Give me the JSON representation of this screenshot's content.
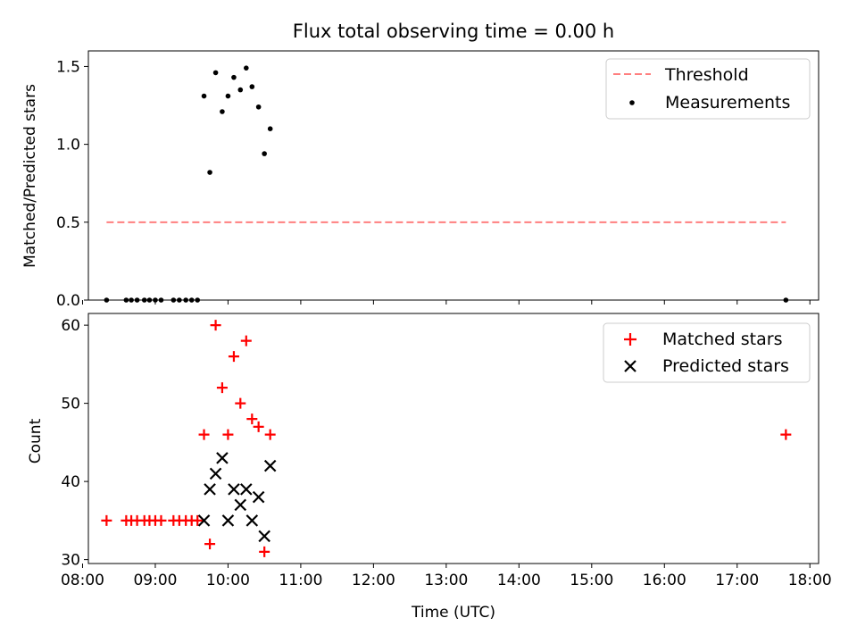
{
  "chart_data": [
    {
      "type": "scatter",
      "title": "Flux total observing time = 0.00 h",
      "xlabel": "",
      "ylabel": "Matched/Predicted stars",
      "xlim": [
        8.08,
        18.12
      ],
      "ylim": [
        0.0,
        1.6
      ],
      "yticks": [
        0.0,
        0.5,
        1.0,
        1.5
      ],
      "ytick_labels": [
        "0.0",
        "0.5",
        "1.0",
        "1.5"
      ],
      "xticks": [
        8,
        9,
        10,
        11,
        12,
        13,
        14,
        15,
        16,
        17,
        18
      ],
      "legend_position": "top-right",
      "legend": [
        "Threshold",
        "Measurements"
      ],
      "threshold": {
        "name": "Threshold",
        "value": 0.5,
        "x_range": [
          8.33,
          17.67
        ],
        "color": "#ff7f7f",
        "style": "dashed"
      },
      "series": [
        {
          "name": "Measurements",
          "marker": "dot",
          "color": "#000000",
          "points": [
            [
              8.33,
              0
            ],
            [
              8.6,
              0
            ],
            [
              8.67,
              0
            ],
            [
              8.75,
              0
            ],
            [
              8.85,
              0
            ],
            [
              8.92,
              0
            ],
            [
              9.0,
              0
            ],
            [
              9.08,
              0
            ],
            [
              9.25,
              0
            ],
            [
              9.33,
              0
            ],
            [
              9.42,
              0
            ],
            [
              9.5,
              0
            ],
            [
              9.58,
              0
            ],
            [
              9.67,
              1.31
            ],
            [
              9.75,
              0.82
            ],
            [
              9.83,
              1.46
            ],
            [
              9.92,
              1.21
            ],
            [
              10.0,
              1.31
            ],
            [
              10.08,
              1.43
            ],
            [
              10.17,
              1.35
            ],
            [
              10.25,
              1.49
            ],
            [
              10.33,
              1.37
            ],
            [
              10.42,
              1.24
            ],
            [
              10.5,
              0.94
            ],
            [
              10.58,
              1.1
            ],
            [
              17.67,
              0
            ]
          ]
        }
      ]
    },
    {
      "type": "scatter",
      "title": "",
      "xlabel": "Time (UTC)",
      "ylabel": "Count",
      "xlim": [
        8.08,
        18.12
      ],
      "ylim": [
        29.5,
        61.5
      ],
      "yticks": [
        30,
        40,
        50,
        60
      ],
      "ytick_labels": [
        "30",
        "40",
        "50",
        "60"
      ],
      "xticks": [
        8,
        9,
        10,
        11,
        12,
        13,
        14,
        15,
        16,
        17,
        18
      ],
      "xtick_labels": [
        "08:00",
        "09:00",
        "10:00",
        "11:00",
        "12:00",
        "13:00",
        "14:00",
        "15:00",
        "16:00",
        "17:00",
        "18:00"
      ],
      "legend_position": "top-right",
      "legend": [
        "Matched stars",
        "Predicted stars"
      ],
      "series": [
        {
          "name": "Matched stars",
          "marker": "plus",
          "color": "#ff0000",
          "points": [
            [
              8.33,
              35
            ],
            [
              8.6,
              35
            ],
            [
              8.67,
              35
            ],
            [
              8.75,
              35
            ],
            [
              8.85,
              35
            ],
            [
              8.92,
              35
            ],
            [
              9.0,
              35
            ],
            [
              9.08,
              35
            ],
            [
              9.25,
              35
            ],
            [
              9.33,
              35
            ],
            [
              9.42,
              35
            ],
            [
              9.5,
              35
            ],
            [
              9.58,
              35
            ],
            [
              9.67,
              46
            ],
            [
              9.75,
              32
            ],
            [
              9.83,
              60
            ],
            [
              9.92,
              52
            ],
            [
              10.0,
              46
            ],
            [
              10.08,
              56
            ],
            [
              10.17,
              50
            ],
            [
              10.25,
              58
            ],
            [
              10.33,
              48
            ],
            [
              10.42,
              47
            ],
            [
              10.5,
              31
            ],
            [
              10.58,
              46
            ],
            [
              17.67,
              46
            ]
          ]
        },
        {
          "name": "Predicted stars",
          "marker": "x",
          "color": "#000000",
          "points": [
            [
              9.67,
              35
            ],
            [
              9.75,
              39
            ],
            [
              9.83,
              41
            ],
            [
              9.92,
              43
            ],
            [
              10.0,
              35
            ],
            [
              10.08,
              39
            ],
            [
              10.17,
              37
            ],
            [
              10.25,
              39
            ],
            [
              10.33,
              35
            ],
            [
              10.42,
              38
            ],
            [
              10.5,
              33
            ],
            [
              10.58,
              42
            ]
          ]
        }
      ]
    }
  ]
}
